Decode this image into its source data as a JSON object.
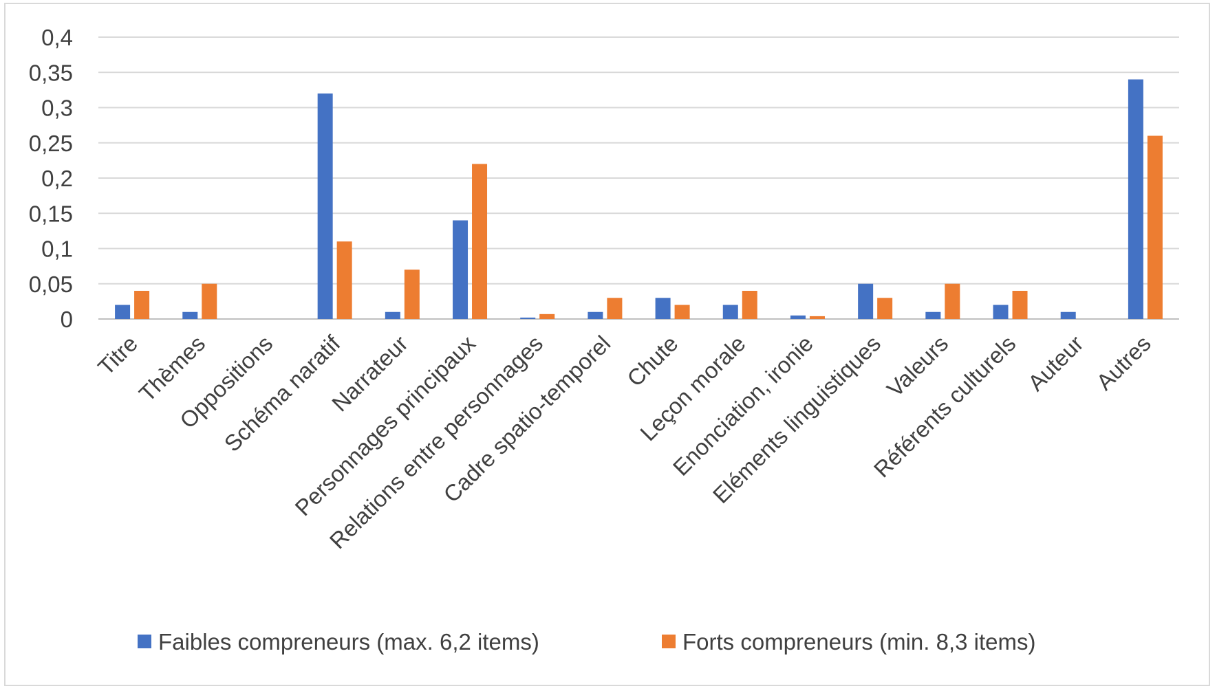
{
  "chart_data": {
    "type": "bar",
    "categories": [
      "Titre",
      "Thèmes",
      "Oppositions",
      "Schéma naratif",
      "Narrateur",
      "Personnages principaux",
      "Relations entre personnages",
      "Cadre spatio-temporel",
      "Chute",
      "Leçon morale",
      "Enonciation, ironie",
      "Eléments linguistiques",
      "Valeurs",
      "Référents culturels",
      "Auteur",
      "Autres"
    ],
    "series": [
      {
        "name": "Faibles compreneurs (max. 6,2 items)",
        "color": "#4472c4",
        "values": [
          0.02,
          0.01,
          0,
          0.32,
          0.01,
          0.14,
          0.002,
          0.01,
          0.03,
          0.02,
          0.005,
          0.05,
          0.01,
          0.02,
          0.01,
          0.34
        ]
      },
      {
        "name": "Forts compreneurs (min. 8,3 items)",
        "color": "#ed7d31",
        "values": [
          0.04,
          0.05,
          0,
          0.11,
          0.07,
          0.22,
          0.007,
          0.03,
          0.02,
          0.04,
          0.004,
          0.03,
          0.05,
          0.04,
          0,
          0.26
        ]
      }
    ],
    "y_ticks": [
      "0",
      "0,05",
      "0,1",
      "0,15",
      "0,2",
      "0,25",
      "0,3",
      "0,35",
      "0,4"
    ],
    "ylim": [
      0,
      0.4
    ],
    "grid": true,
    "legend_position": "bottom",
    "title": "",
    "xlabel": "",
    "ylabel": ""
  }
}
